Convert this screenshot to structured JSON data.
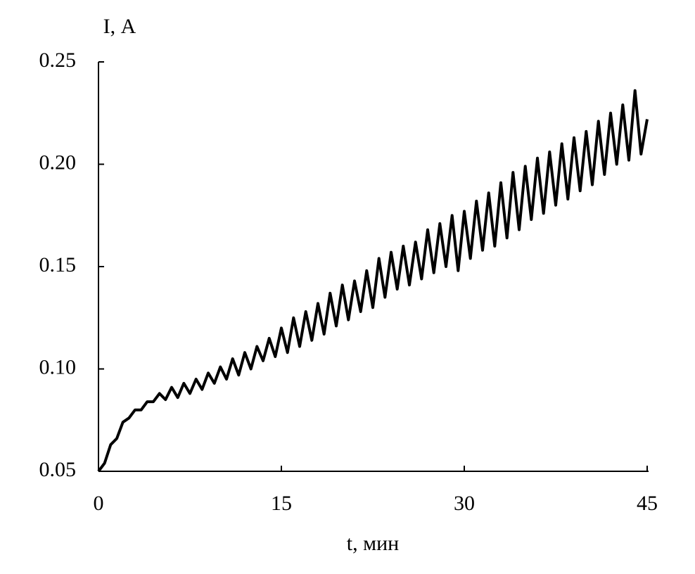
{
  "chart_data": {
    "type": "line",
    "x_label": "t, мин",
    "y_label": "I, А",
    "xlim": [
      0,
      45
    ],
    "xticks": [
      0,
      15,
      30,
      45
    ],
    "ylim": [
      0.05,
      0.25
    ],
    "yticks": [
      0.05,
      {
        "value": 0.1,
        "label": "0.10"
      },
      0.15,
      {
        "value": 0.2,
        "label": "0.20"
      },
      0.25
    ],
    "grid": false,
    "x": [
      0,
      0.5,
      1,
      1.5,
      2,
      2.5,
      3,
      3.5,
      4,
      4.5,
      5,
      5.5,
      6,
      6.5,
      7,
      7.5,
      8,
      8.5,
      9,
      9.5,
      10,
      10.5,
      11,
      11.5,
      12,
      12.5,
      13,
      13.5,
      14,
      14.5,
      15,
      15.5,
      16,
      16.5,
      17,
      17.5,
      18,
      18.5,
      19,
      19.5,
      20,
      20.5,
      21,
      21.5,
      22,
      22.5,
      23,
      23.5,
      24,
      24.5,
      25,
      25.5,
      26,
      26.5,
      27,
      27.5,
      28,
      28.5,
      29,
      29.5,
      30,
      30.5,
      31,
      31.5,
      32,
      32.5,
      33,
      33.5,
      34,
      34.5,
      35,
      35.5,
      36,
      36.5,
      37,
      37.5,
      38,
      38.5,
      39,
      39.5,
      40,
      40.5,
      41,
      41.5,
      42,
      42.5,
      43,
      43.5,
      44,
      44.5,
      45
    ],
    "series": [
      {
        "color": "#000000",
        "values": [
          0.05,
          0.054,
          0.063,
          0.066,
          0.074,
          0.076,
          0.08,
          0.08,
          0.084,
          0.084,
          0.088,
          0.085,
          0.091,
          0.086,
          0.093,
          0.088,
          0.095,
          0.09,
          0.098,
          0.093,
          0.101,
          0.095,
          0.105,
          0.097,
          0.108,
          0.1,
          0.111,
          0.104,
          0.115,
          0.106,
          0.12,
          0.108,
          0.125,
          0.111,
          0.128,
          0.114,
          0.132,
          0.117,
          0.137,
          0.121,
          0.141,
          0.124,
          0.143,
          0.128,
          0.148,
          0.13,
          0.154,
          0.135,
          0.157,
          0.139,
          0.16,
          0.141,
          0.162,
          0.144,
          0.168,
          0.147,
          0.171,
          0.15,
          0.175,
          0.148,
          0.177,
          0.154,
          0.182,
          0.158,
          0.186,
          0.16,
          0.191,
          0.164,
          0.196,
          0.168,
          0.199,
          0.173,
          0.203,
          0.176,
          0.206,
          0.18,
          0.21,
          0.183,
          0.213,
          0.187,
          0.216,
          0.19,
          0.221,
          0.195,
          0.225,
          0.2,
          0.229,
          0.202,
          0.236,
          0.205,
          0.222
        ]
      }
    ]
  }
}
